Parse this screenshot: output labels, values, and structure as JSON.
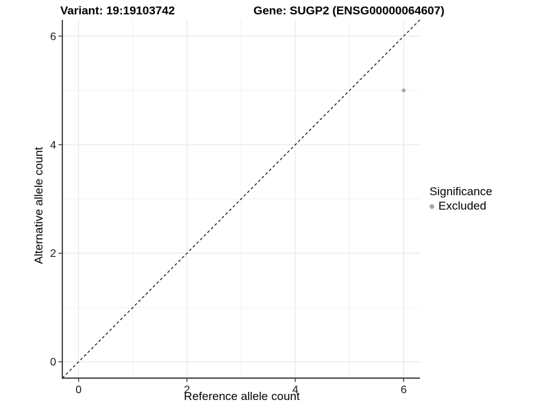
{
  "chart_data": {
    "type": "scatter",
    "title_left": "Variant: 19:19103742",
    "title_right": "Gene: SUGP2 (ENSG00000064607)",
    "xlabel": "Reference allele count",
    "ylabel": "Alternative allele count",
    "xlim": [
      -0.3,
      6.3
    ],
    "ylim": [
      -0.3,
      6.3
    ],
    "x_ticks": [
      0,
      2,
      4,
      6
    ],
    "y_ticks": [
      0,
      2,
      4,
      6
    ],
    "x_minor_ticks": [
      1,
      3,
      5
    ],
    "y_minor_ticks": [
      1,
      3,
      5
    ],
    "grid": "on",
    "legend_position": "right",
    "series": [
      {
        "name": "Excluded",
        "color": "#aaaaaa",
        "points": [
          {
            "x": 6,
            "y": 5
          }
        ]
      }
    ],
    "reference_line": {
      "description": "identity line y = x",
      "slope": 1,
      "intercept": 0,
      "style": "dashed",
      "color": "#000000"
    },
    "legend": {
      "title": "Significance",
      "items": [
        {
          "label": "Excluded",
          "color": "#aaaaaa"
        }
      ]
    },
    "colors": {
      "background": "#ffffff",
      "grid_major": "#e4e4e4",
      "grid_minor": "#f1f1f1",
      "axis_line": "#333333",
      "tick_mark": "#333333",
      "tick_text": "#1a1a1a",
      "point": "#aaaaaa"
    }
  }
}
